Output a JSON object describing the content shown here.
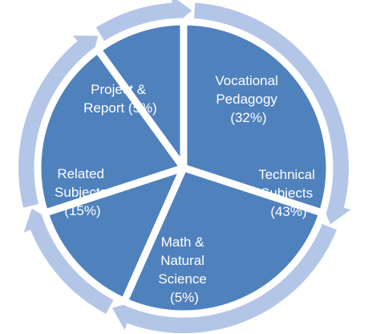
{
  "colors": {
    "ring": "#b4c6e7",
    "segment": "#4f81bd",
    "segment_stroke": "#ffffff",
    "text": "#ffffff"
  },
  "segments": [
    {
      "lines": [
        "Vocational",
        "Pedagogy",
        "(32%)"
      ]
    },
    {
      "lines": [
        "Technical",
        "Subjects",
        "(43%)"
      ]
    },
    {
      "lines": [
        "Math &",
        "Natural",
        "Science",
        "(5%)"
      ]
    },
    {
      "lines": [
        "Related",
        "Subjects",
        "(15%)"
      ]
    },
    {
      "lines": [
        "Project &",
        "Report (5%)"
      ]
    }
  ]
}
